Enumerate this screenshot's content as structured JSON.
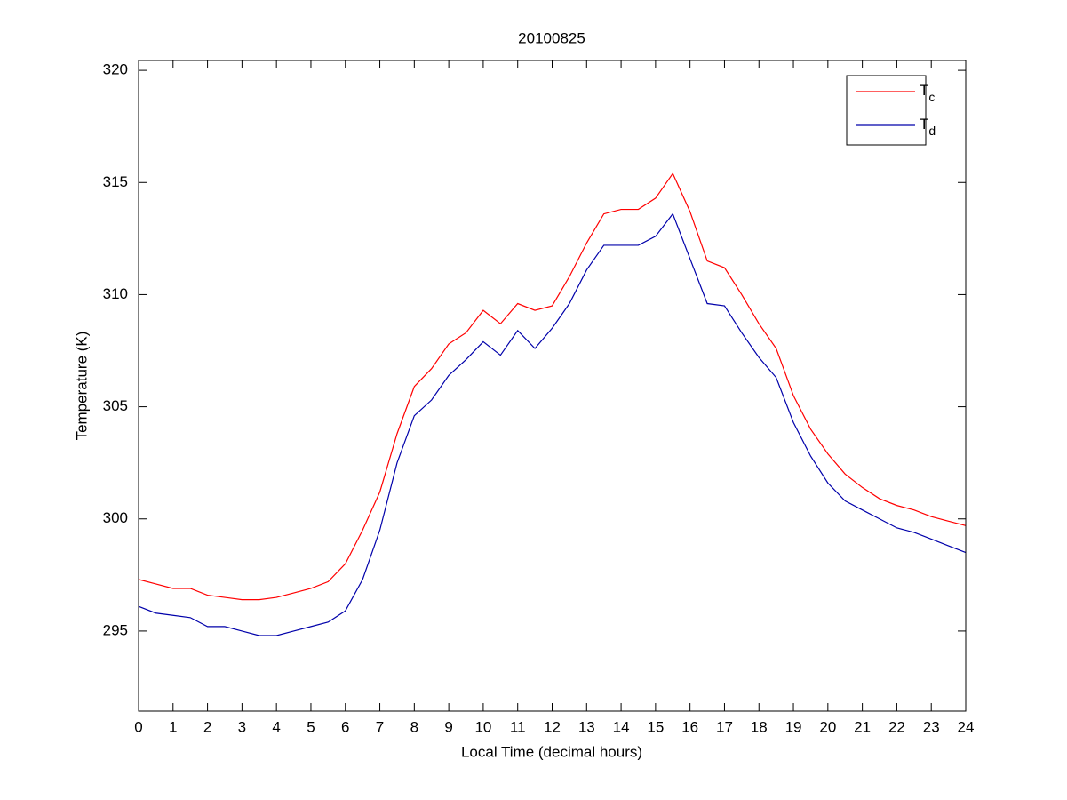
{
  "chart_data": {
    "type": "line",
    "title": "20100825",
    "xlabel": "Local Time (decimal hours)",
    "ylabel": "Temperature (K)",
    "x": [
      0,
      0.5,
      1,
      1.5,
      2,
      2.5,
      3,
      3.5,
      4,
      4.5,
      5,
      5.5,
      6,
      6.5,
      7,
      7.5,
      8,
      8.5,
      9,
      9.5,
      10,
      10.5,
      11,
      11.5,
      12,
      12.5,
      13,
      13.5,
      14,
      14.5,
      15,
      15.5,
      16,
      16.5,
      17,
      17.5,
      18,
      18.5,
      19,
      19.5,
      20,
      20.5,
      21,
      21.5,
      22,
      22.5,
      23,
      23.5,
      24
    ],
    "series": [
      {
        "name": "Tc",
        "color": "#ff0000",
        "values": [
          297.3,
          297.1,
          296.9,
          296.9,
          296.6,
          296.5,
          296.4,
          296.4,
          296.5,
          296.7,
          296.9,
          297.2,
          298.0,
          299.5,
          301.2,
          303.8,
          305.9,
          306.7,
          307.8,
          308.3,
          309.3,
          308.7,
          309.6,
          309.3,
          309.5,
          310.8,
          312.3,
          313.6,
          313.8,
          313.8,
          314.3,
          315.4,
          313.7,
          311.5,
          311.2,
          310.0,
          308.7,
          307.6,
          305.5,
          304.0,
          302.9,
          302.0,
          301.4,
          300.9,
          300.6,
          300.4,
          300.1,
          299.9,
          299.7
        ]
      },
      {
        "name": "Td",
        "color": "#0000aa",
        "values": [
          296.1,
          295.8,
          295.7,
          295.6,
          295.2,
          295.2,
          295.0,
          294.8,
          294.8,
          295.0,
          295.2,
          295.4,
          295.9,
          297.3,
          299.5,
          302.5,
          304.6,
          305.3,
          306.4,
          307.1,
          307.9,
          307.3,
          308.4,
          307.6,
          308.5,
          309.6,
          311.1,
          312.2,
          312.2,
          312.2,
          312.6,
          313.6,
          311.6,
          309.6,
          309.5,
          308.3,
          307.2,
          306.3,
          304.3,
          302.8,
          301.6,
          300.8,
          300.4,
          300.0,
          299.6,
          299.4,
          299.1,
          298.8,
          298.5
        ]
      }
    ],
    "xlim": [
      0,
      24
    ],
    "xticks": [
      0,
      1,
      2,
      3,
      4,
      5,
      6,
      7,
      8,
      9,
      10,
      11,
      12,
      13,
      14,
      15,
      16,
      17,
      18,
      19,
      20,
      21,
      22,
      23,
      24
    ],
    "ylim": [
      291.43,
      320.44
    ],
    "yticks": [
      295,
      300,
      305,
      310,
      315,
      320
    ],
    "legend": "upper right",
    "grid": false
  }
}
